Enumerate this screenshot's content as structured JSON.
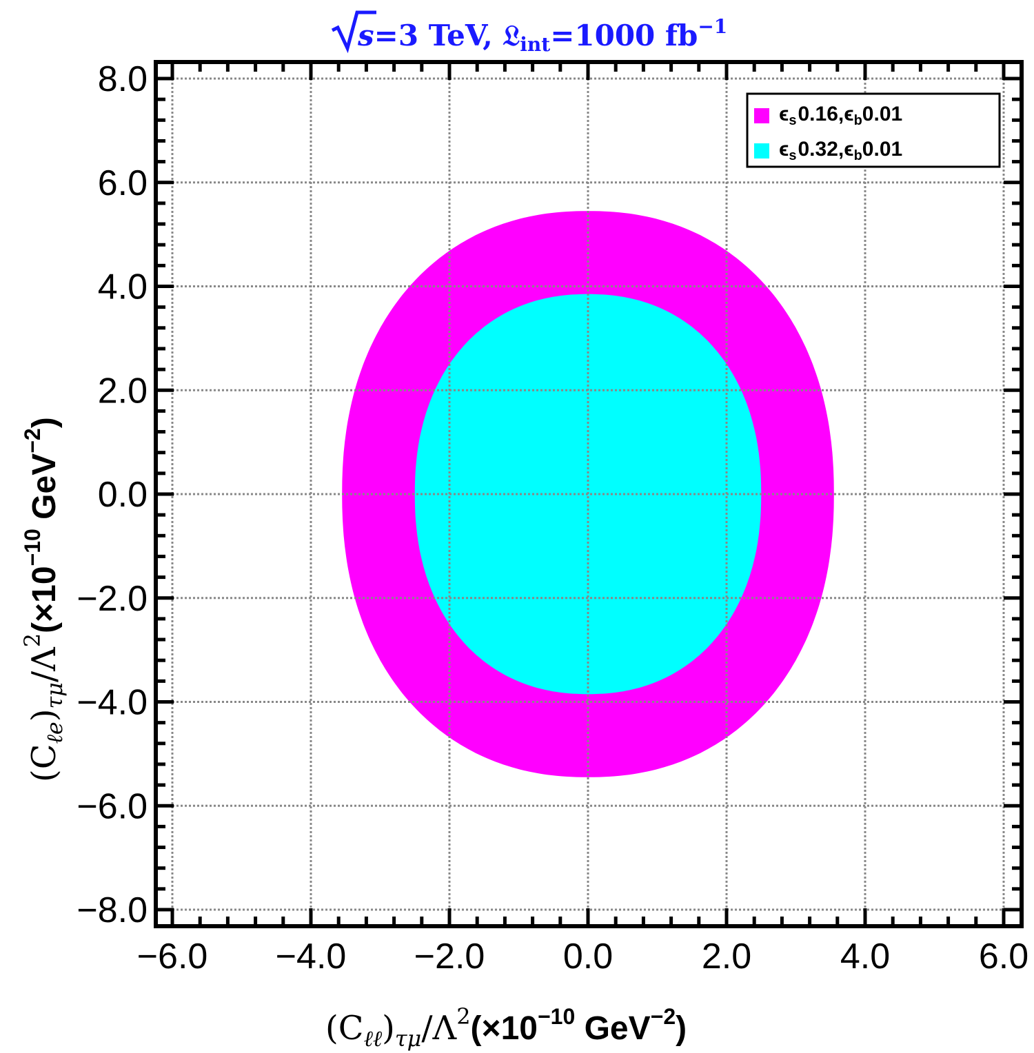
{
  "chart_data": {
    "type": "contour",
    "title": {
      "sqrt_symbol": "√",
      "s": "s",
      "energy": "=3 TeV, ",
      "lumi_symbol": "𝔏",
      "lumi_sub": "int",
      "lumi": "=1000 fb",
      "lumi_exp": "−1"
    },
    "xlabel": {
      "lhs": "(C",
      "lhs_sub": "ℓℓ",
      "mid": ")",
      "mid_sub": "τμ",
      "over": "/Λ",
      "sq": "2",
      "unit": "(×10",
      "unit_exp1": "−10",
      "unit2": " GeV",
      "unit_exp2": "−2",
      "close": ")"
    },
    "ylabel": {
      "lhs": "(C",
      "lhs_sub": "ℓe",
      "mid": ")",
      "mid_sub": "τμ",
      "over": "/Λ",
      "sq": "2",
      "unit": "(×10",
      "unit_exp1": "−10",
      "unit2": " GeV",
      "unit_exp2": "−2",
      "close": ")"
    },
    "xlim": [
      -6.0,
      6.0
    ],
    "ylim": [
      -8.0,
      8.0
    ],
    "xticks": [
      -6.0,
      -4.0,
      -2.0,
      0.0,
      2.0,
      4.0,
      6.0
    ],
    "xtick_labels": [
      "−6.0",
      "−4.0",
      "−2.0",
      "0.0",
      "2.0",
      "4.0",
      "6.0"
    ],
    "yticks": [
      -8.0,
      -6.0,
      -4.0,
      -2.0,
      0.0,
      2.0,
      4.0,
      6.0,
      8.0
    ],
    "ytick_labels": [
      "−8.0",
      "−6.0",
      "−4.0",
      "−2.0",
      "0.0",
      "2.0",
      "4.0",
      "6.0",
      "8.0"
    ],
    "grid": true,
    "legend_position": "top-right",
    "series": [
      {
        "name": "ε_s=0.16,ε_b=0.01",
        "eps_s": "0.16",
        "eps_b": "0.01",
        "color": "#ff00ff",
        "shape": "region",
        "center": [
          0.0,
          0.0
        ],
        "x_range": [
          -3.55,
          3.55
        ],
        "y_range": [
          -5.45,
          5.45
        ]
      },
      {
        "name": "ε_s=0.32,ε_b=0.01",
        "eps_s": "0.32",
        "eps_b": "0.01",
        "color": "#00ffff",
        "shape": "region",
        "center": [
          0.0,
          0.0
        ],
        "x_range": [
          -2.5,
          2.5
        ],
        "y_range": [
          -3.85,
          3.85
        ]
      }
    ],
    "colors": {
      "title": "#1a1aff",
      "frame": "#000000",
      "grid": "#888888"
    }
  }
}
